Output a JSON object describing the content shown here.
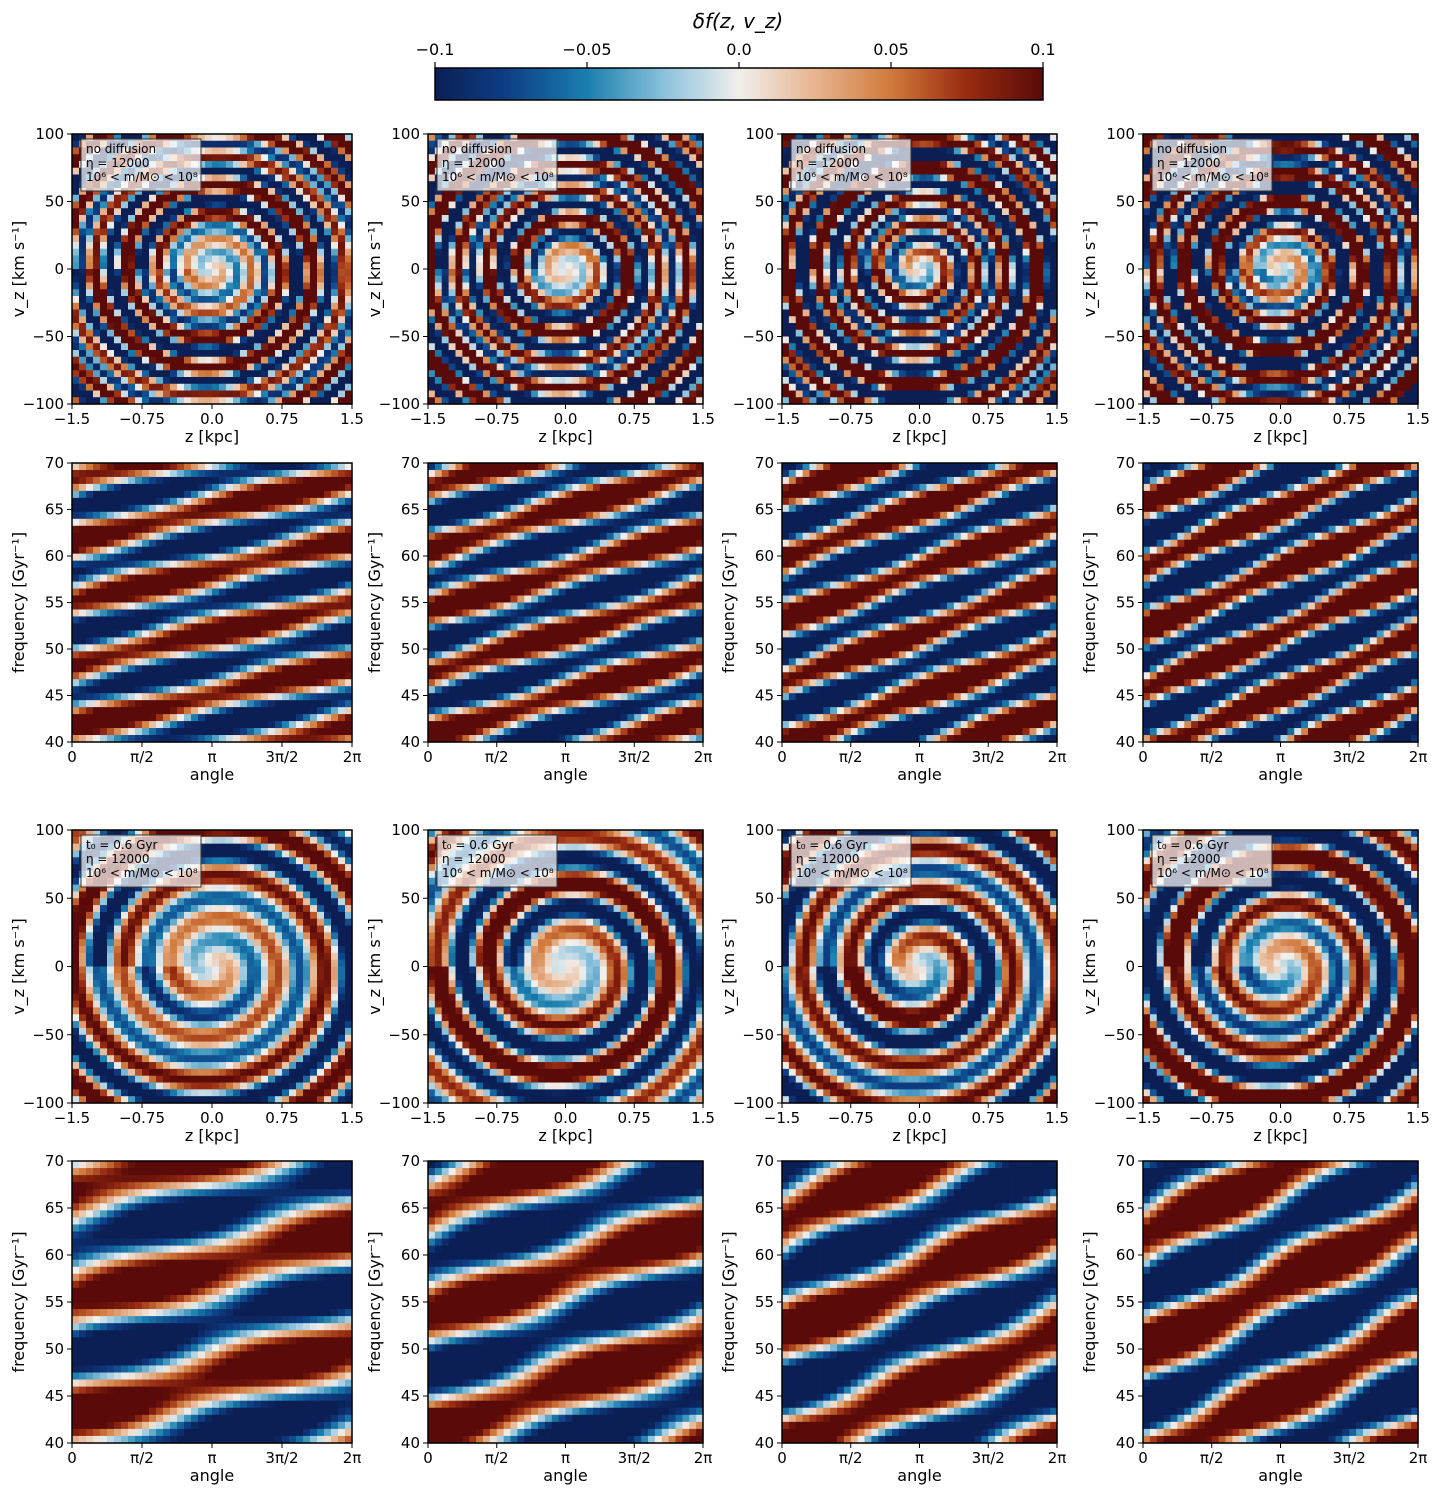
{
  "colorbar": {
    "title": "δf(z, v_z)",
    "ticks": [
      "−0.1",
      "−0.05",
      "0.0",
      "0.05",
      "0.1"
    ],
    "range": [
      -0.1,
      0.1
    ],
    "colormap": "diverging-blue-white-red",
    "colors": {
      "low": "#0b2a67",
      "mid": "#f1efec",
      "high": "#670d0a"
    }
  },
  "chart_data": [
    {
      "type": "heatmap",
      "panel": "top phase-space",
      "column": 1,
      "xlabel": "z [kpc]",
      "ylabel": "v_z [km s⁻¹]",
      "xlim": [
        -1.5,
        1.5
      ],
      "ylim": [
        -100,
        100
      ],
      "xticks": [
        "−1.5",
        "−0.75",
        "0.0",
        "0.75",
        "1.5"
      ],
      "yticks": [
        "−100",
        "−50",
        "0",
        "50",
        "100"
      ],
      "annotation": [
        "no diffusion",
        "η = 12000",
        "10⁶ < m/M⊙ < 10⁸"
      ]
    },
    {
      "type": "heatmap",
      "panel": "top phase-space",
      "column": 2,
      "xlabel": "z [kpc]",
      "ylabel": "v_z [km s⁻¹]",
      "xlim": [
        -1.5,
        1.5
      ],
      "ylim": [
        -100,
        100
      ],
      "xticks": [
        "−1.5",
        "−0.75",
        "0.0",
        "0.75",
        "1.5"
      ],
      "yticks": [
        "−100",
        "−50",
        "0",
        "50",
        "100"
      ],
      "annotation": [
        "no diffusion",
        "η = 12000",
        "10⁶ < m/M⊙ < 10⁸"
      ]
    },
    {
      "type": "heatmap",
      "panel": "top phase-space",
      "column": 3,
      "xlabel": "z [kpc]",
      "ylabel": "v_z [km s⁻¹]",
      "xlim": [
        -1.5,
        1.5
      ],
      "ylim": [
        -100,
        100
      ],
      "xticks": [
        "−1.5",
        "−0.75",
        "0.0",
        "0.75",
        "1.5"
      ],
      "yticks": [
        "−100",
        "−50",
        "0",
        "50",
        "100"
      ],
      "annotation": [
        "no diffusion",
        "η = 12000",
        "10⁶ < m/M⊙ < 10⁸"
      ]
    },
    {
      "type": "heatmap",
      "panel": "top phase-space",
      "column": 4,
      "xlabel": "z [kpc]",
      "ylabel": "v_z [km s⁻¹]",
      "xlim": [
        -1.5,
        1.5
      ],
      "ylim": [
        -100,
        100
      ],
      "xticks": [
        "−1.5",
        "−0.75",
        "0.0",
        "0.75",
        "1.5"
      ],
      "yticks": [
        "−100",
        "−50",
        "0",
        "50",
        "100"
      ],
      "annotation": [
        "no diffusion",
        "η = 12000",
        "10⁶ < m/M⊙ < 10⁸"
      ]
    },
    {
      "type": "heatmap",
      "panel": "top frequency-angle",
      "column": 1,
      "xlabel": "angle",
      "ylabel": "frequency [Gyr⁻¹]",
      "xlim": [
        0,
        6.283
      ],
      "ylim": [
        40,
        70
      ],
      "xticks": [
        "0",
        "π/2",
        "π",
        "3π/2",
        "2π"
      ],
      "yticks": [
        "40",
        "45",
        "50",
        "55",
        "60",
        "65",
        "70"
      ]
    },
    {
      "type": "heatmap",
      "panel": "top frequency-angle",
      "column": 2,
      "xlabel": "angle",
      "ylabel": "frequency [Gyr⁻¹]",
      "xlim": [
        0,
        6.283
      ],
      "ylim": [
        40,
        70
      ],
      "xticks": [
        "0",
        "π/2",
        "π",
        "3π/2",
        "2π"
      ],
      "yticks": [
        "40",
        "45",
        "50",
        "55",
        "60",
        "65",
        "70"
      ]
    },
    {
      "type": "heatmap",
      "panel": "top frequency-angle",
      "column": 3,
      "xlabel": "angle",
      "ylabel": "frequency [Gyr⁻¹]",
      "xlim": [
        0,
        6.283
      ],
      "ylim": [
        40,
        70
      ],
      "xticks": [
        "0",
        "π/2",
        "π",
        "3π/2",
        "2π"
      ],
      "yticks": [
        "40",
        "45",
        "50",
        "55",
        "60",
        "65",
        "70"
      ]
    },
    {
      "type": "heatmap",
      "panel": "top frequency-angle",
      "column": 4,
      "xlabel": "angle",
      "ylabel": "frequency [Gyr⁻¹]",
      "xlim": [
        0,
        6.283
      ],
      "ylim": [
        40,
        70
      ],
      "xticks": [
        "0",
        "π/2",
        "π",
        "3π/2",
        "2π"
      ],
      "yticks": [
        "40",
        "45",
        "50",
        "55",
        "60",
        "65",
        "70"
      ]
    },
    {
      "type": "heatmap",
      "panel": "bottom phase-space",
      "column": 1,
      "xlabel": "z [kpc]",
      "ylabel": "v_z [km s⁻¹]",
      "xlim": [
        -1.5,
        1.5
      ],
      "ylim": [
        -100,
        100
      ],
      "xticks": [
        "−1.5",
        "−0.75",
        "0.0",
        "0.75",
        "1.5"
      ],
      "yticks": [
        "−100",
        "−50",
        "0",
        "50",
        "100"
      ],
      "annotation": [
        "t₀ = 0.6 Gyr",
        "η = 12000",
        "10⁶ < m/M⊙ < 10⁸"
      ]
    },
    {
      "type": "heatmap",
      "panel": "bottom phase-space",
      "column": 2,
      "xlabel": "z [kpc]",
      "ylabel": "v_z [km s⁻¹]",
      "xlim": [
        -1.5,
        1.5
      ],
      "ylim": [
        -100,
        100
      ],
      "xticks": [
        "−1.5",
        "−0.75",
        "0.0",
        "0.75",
        "1.5"
      ],
      "yticks": [
        "−100",
        "−50",
        "0",
        "50",
        "100"
      ],
      "annotation": [
        "t₀ = 0.6 Gyr",
        "η = 12000",
        "10⁶ < m/M⊙ < 10⁸"
      ]
    },
    {
      "type": "heatmap",
      "panel": "bottom phase-space",
      "column": 3,
      "xlabel": "z [kpc]",
      "ylabel": "v_z [km s⁻¹]",
      "xlim": [
        -1.5,
        1.5
      ],
      "ylim": [
        -100,
        100
      ],
      "xticks": [
        "−1.5",
        "−0.75",
        "0.0",
        "0.75",
        "1.5"
      ],
      "yticks": [
        "−100",
        "−50",
        "0",
        "50",
        "100"
      ],
      "annotation": [
        "t₀ = 0.6 Gyr",
        "η = 12000",
        "10⁶ < m/M⊙ < 10⁸"
      ]
    },
    {
      "type": "heatmap",
      "panel": "bottom phase-space",
      "column": 4,
      "xlabel": "z [kpc]",
      "ylabel": "v_z [km s⁻¹]",
      "xlim": [
        -1.5,
        1.5
      ],
      "ylim": [
        -100,
        100
      ],
      "xticks": [
        "−1.5",
        "−0.75",
        "0.0",
        "0.75",
        "1.5"
      ],
      "yticks": [
        "−100",
        "−50",
        "0",
        "50",
        "100"
      ],
      "annotation": [
        "t₀ = 0.6 Gyr",
        "η = 12000",
        "10⁶ < m/M⊙ < 10⁸"
      ]
    },
    {
      "type": "heatmap",
      "panel": "bottom frequency-angle",
      "column": 1,
      "xlabel": "angle",
      "ylabel": "frequency [Gyr⁻¹]",
      "xlim": [
        0,
        6.283
      ],
      "ylim": [
        40,
        70
      ],
      "xticks": [
        "0",
        "π/2",
        "π",
        "3π/2",
        "2π"
      ],
      "yticks": [
        "40",
        "45",
        "50",
        "55",
        "60",
        "65",
        "70"
      ]
    },
    {
      "type": "heatmap",
      "panel": "bottom frequency-angle",
      "column": 2,
      "xlabel": "angle",
      "ylabel": "frequency [Gyr⁻¹]",
      "xlim": [
        0,
        6.283
      ],
      "ylim": [
        40,
        70
      ],
      "xticks": [
        "0",
        "π/2",
        "π",
        "3π/2",
        "2π"
      ],
      "yticks": [
        "40",
        "45",
        "50",
        "55",
        "60",
        "65",
        "70"
      ]
    },
    {
      "type": "heatmap",
      "panel": "bottom frequency-angle",
      "column": 3,
      "xlabel": "angle",
      "ylabel": "frequency [Gyr⁻¹]",
      "xlim": [
        0,
        6.283
      ],
      "ylim": [
        40,
        70
      ],
      "xticks": [
        "0",
        "π/2",
        "π",
        "3π/2",
        "2π"
      ],
      "yticks": [
        "40",
        "45",
        "50",
        "55",
        "60",
        "65",
        "70"
      ]
    },
    {
      "type": "heatmap",
      "panel": "bottom frequency-angle",
      "column": 4,
      "xlabel": "angle",
      "ylabel": "frequency [Gyr⁻¹]",
      "xlim": [
        0,
        6.283
      ],
      "ylim": [
        40,
        70
      ],
      "xticks": [
        "0",
        "π/2",
        "π",
        "3π/2",
        "2π"
      ],
      "yticks": [
        "40",
        "45",
        "50",
        "55",
        "60",
        "65",
        "70"
      ]
    }
  ]
}
